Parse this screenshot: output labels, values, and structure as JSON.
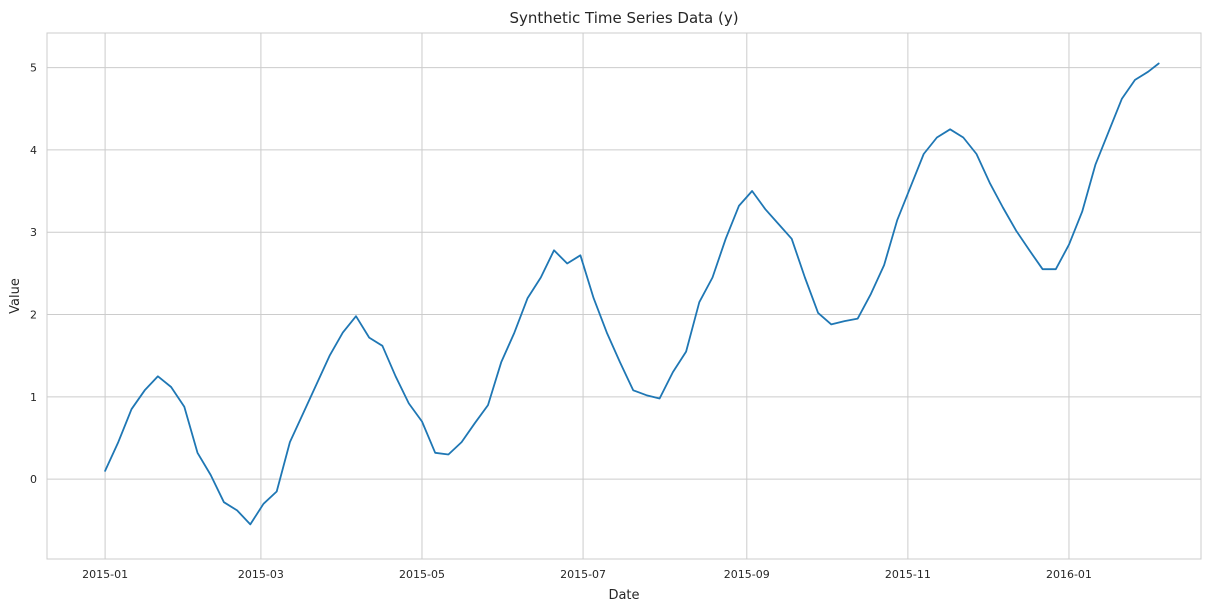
{
  "chart_data": {
    "type": "line",
    "title": "Synthetic Time Series Data (y)",
    "xlabel": "Date",
    "ylabel": "Value",
    "x_axis": {
      "kind": "date",
      "range": [
        "2014-12-10",
        "2016-02-20"
      ],
      "ticks": [
        "2015-01-01",
        "2015-03-01",
        "2015-05-01",
        "2015-07-01",
        "2015-09-01",
        "2015-11-01",
        "2016-01-01"
      ],
      "tick_labels": [
        "2015-01",
        "2015-03",
        "2015-05",
        "2015-07",
        "2015-09",
        "2015-11",
        "2016-01"
      ]
    },
    "y_axis": {
      "range": [
        -0.97,
        5.42
      ],
      "ticks": [
        0,
        1,
        2,
        3,
        4,
        5
      ],
      "tick_labels": [
        "0",
        "1",
        "2",
        "3",
        "4",
        "5"
      ]
    },
    "grid": true,
    "color": "#1f77b4",
    "series": [
      {
        "x": [
          "2015-01-01",
          "2015-01-06",
          "2015-01-11",
          "2015-01-16",
          "2015-01-21",
          "2015-01-26",
          "2015-01-31",
          "2015-02-05",
          "2015-02-10",
          "2015-02-15",
          "2015-02-20",
          "2015-02-25",
          "2015-03-02",
          "2015-03-07",
          "2015-03-12",
          "2015-03-17",
          "2015-03-22",
          "2015-03-27",
          "2015-04-01",
          "2015-04-06",
          "2015-04-11",
          "2015-04-16",
          "2015-04-21",
          "2015-04-26",
          "2015-05-01",
          "2015-05-06",
          "2015-05-11",
          "2015-05-16",
          "2015-05-21",
          "2015-05-26",
          "2015-05-31",
          "2015-06-05",
          "2015-06-10",
          "2015-06-15",
          "2015-06-20",
          "2015-06-25",
          "2015-06-30",
          "2015-07-05",
          "2015-07-10",
          "2015-07-15",
          "2015-07-20",
          "2015-07-25",
          "2015-07-30",
          "2015-08-04",
          "2015-08-09",
          "2015-08-14",
          "2015-08-19",
          "2015-08-24",
          "2015-08-29",
          "2015-09-03",
          "2015-09-08",
          "2015-09-13",
          "2015-09-18",
          "2015-09-23",
          "2015-09-28",
          "2015-10-03",
          "2015-10-08",
          "2015-10-13",
          "2015-10-18",
          "2015-10-23",
          "2015-10-28",
          "2015-11-02",
          "2015-11-07",
          "2015-11-12",
          "2015-11-17",
          "2015-11-22",
          "2015-11-27",
          "2015-12-02",
          "2015-12-07",
          "2015-12-12",
          "2015-12-17",
          "2015-12-22",
          "2015-12-27",
          "2016-01-01",
          "2016-01-06",
          "2016-01-11",
          "2016-01-16",
          "2016-01-21",
          "2016-01-26",
          "2016-01-31",
          "2016-02-04"
        ],
        "y": [
          0.1,
          0.45,
          0.85,
          1.08,
          1.25,
          1.12,
          0.88,
          0.32,
          0.05,
          -0.28,
          -0.38,
          -0.55,
          -0.3,
          -0.15,
          0.45,
          0.8,
          1.15,
          1.5,
          1.78,
          1.98,
          1.72,
          1.62,
          1.25,
          0.92,
          0.7,
          0.32,
          0.3,
          0.45,
          0.68,
          0.9,
          1.42,
          1.78,
          2.2,
          2.45,
          2.78,
          2.62,
          2.72,
          2.2,
          1.78,
          1.42,
          1.08,
          1.02,
          0.98,
          1.3,
          1.55,
          2.15,
          2.45,
          2.92,
          3.32,
          3.5,
          3.28,
          3.1,
          2.92,
          2.45,
          2.02,
          1.88,
          1.92,
          1.95,
          2.25,
          2.6,
          3.15,
          3.55,
          3.95,
          4.15,
          4.25,
          4.15,
          3.95,
          3.6,
          3.3,
          3.02,
          2.78,
          2.55,
          2.55,
          2.85,
          3.25,
          3.82,
          4.22,
          4.62,
          4.85,
          4.95,
          5.05
        ]
      }
    ]
  }
}
